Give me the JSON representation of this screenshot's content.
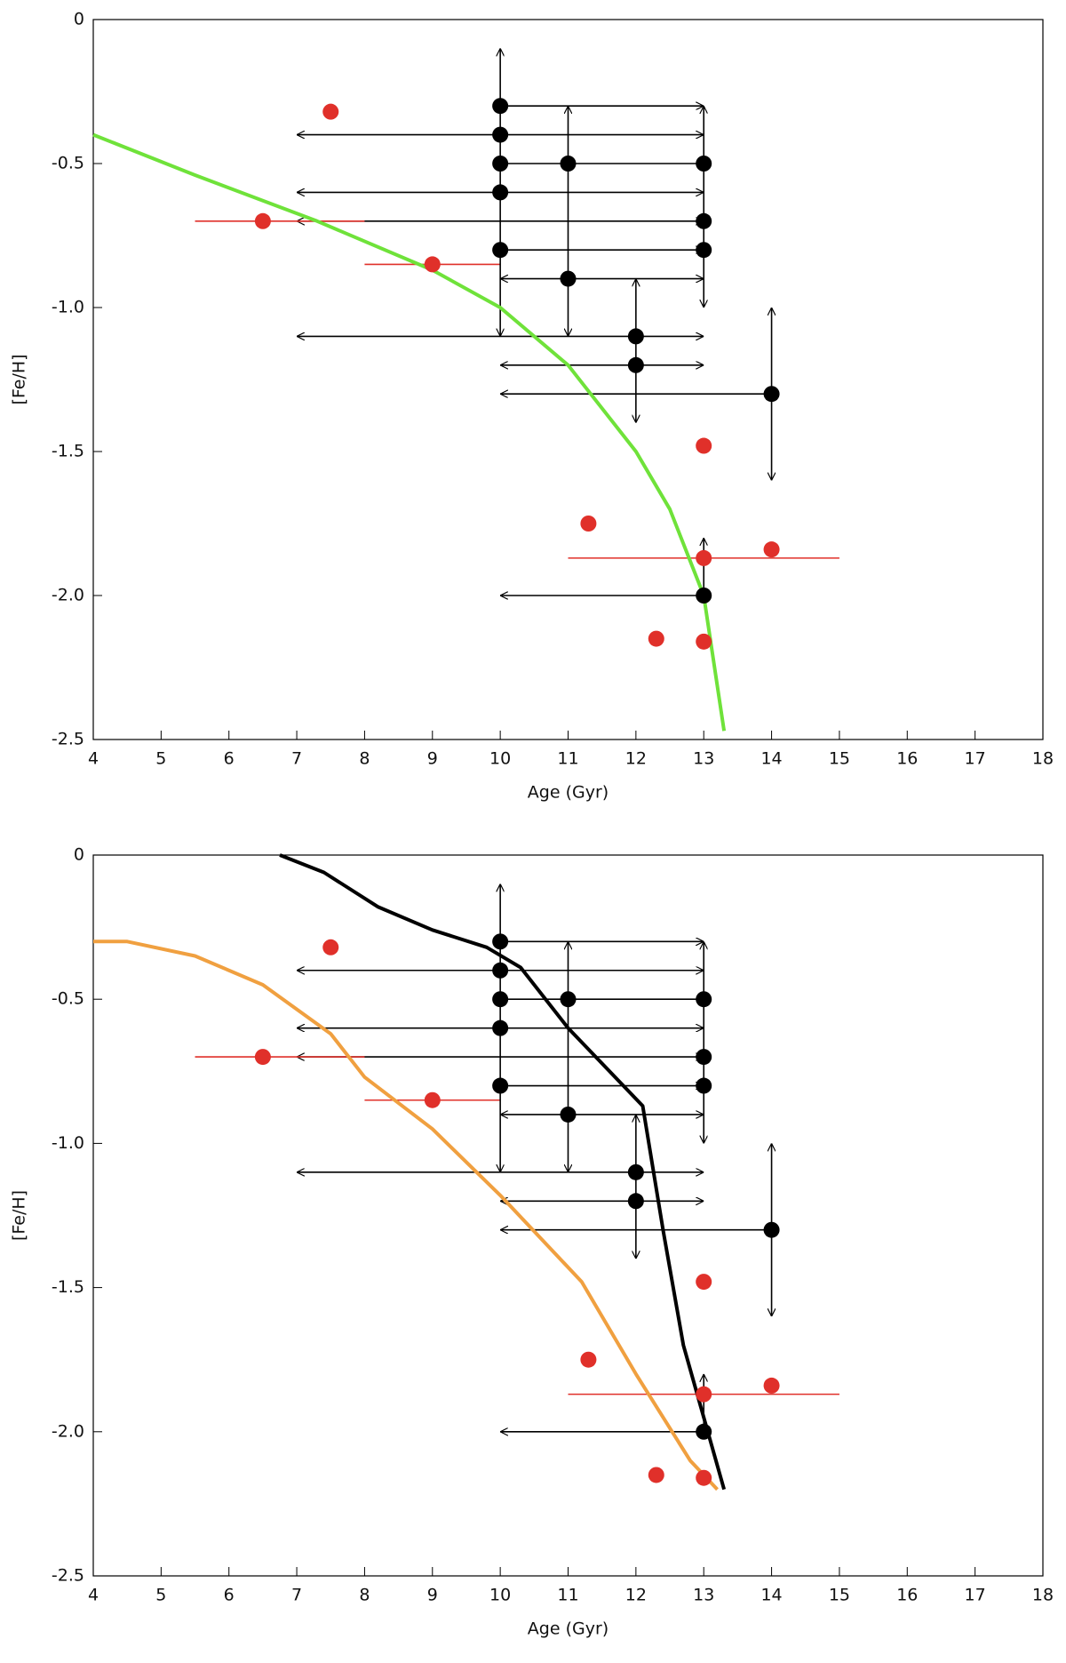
{
  "chart_data": [
    {
      "type": "scatter",
      "xlabel": "Age (Gyr)",
      "ylabel": "[Fe/H]",
      "xlim": [
        4,
        18
      ],
      "ylim": [
        -2.5,
        0
      ],
      "xticks": [
        4,
        5,
        6,
        7,
        8,
        9,
        10,
        11,
        12,
        13,
        14,
        15,
        16,
        17,
        18
      ],
      "yticks": [
        {
          "value": -2.5,
          "label": "-2.5"
        },
        {
          "value": -2.0,
          "label": "-2.0"
        },
        {
          "value": -1.5,
          "label": "-1.5"
        },
        {
          "value": -1.0,
          "label": "-1.0"
        },
        -0.5,
        0
      ],
      "series": [
        {
          "color": "#000000",
          "x": [
            10,
            10,
            10,
            11,
            13,
            10,
            13,
            10,
            13,
            11,
            12,
            12,
            14,
            13
          ],
          "values": [
            -0.3,
            -0.4,
            -0.5,
            -0.5,
            -0.5,
            -0.6,
            -0.7,
            -0.8,
            -0.8,
            -0.9,
            -1.1,
            -1.2,
            -1.3,
            -2.0
          ]
        },
        {
          "color": "#e0302a",
          "x": [
            7.5,
            6.5,
            9,
            13,
            11.3,
            14,
            13,
            12.3,
            13
          ],
          "values": [
            -0.32,
            -0.7,
            -0.85,
            -1.48,
            -1.75,
            -1.84,
            -1.87,
            -2.15,
            -2.16
          ]
        }
      ],
      "hbars": [
        {
          "color": "#000000",
          "y": -0.3,
          "x": [
            10,
            13
          ],
          "arrows": "end"
        },
        {
          "color": "#000000",
          "y": -0.4,
          "x": [
            7,
            13
          ],
          "arrows": "both"
        },
        {
          "color": "#000000",
          "y": -0.5,
          "x": [
            10,
            13
          ],
          "arrows": "none"
        },
        {
          "color": "#000000",
          "y": -0.6,
          "x": [
            7,
            13
          ],
          "arrows": "both"
        },
        {
          "color": "#000000",
          "y": -0.7,
          "x": [
            7,
            13
          ],
          "arrows": "both"
        },
        {
          "color": "#000000",
          "y": -0.8,
          "x": [
            10,
            13
          ],
          "arrows": "end"
        },
        {
          "color": "#000000",
          "y": -0.9,
          "x": [
            10,
            13
          ],
          "arrows": "both"
        },
        {
          "color": "#000000",
          "y": -1.1,
          "x": [
            7,
            13
          ],
          "arrows": "both"
        },
        {
          "color": "#000000",
          "y": -1.2,
          "x": [
            10,
            13
          ],
          "arrows": "both"
        },
        {
          "color": "#000000",
          "y": -1.3,
          "x": [
            14,
            10
          ],
          "arrows": "end"
        },
        {
          "color": "#000000",
          "y": -2.0,
          "x": [
            13,
            10
          ],
          "arrows": "end"
        },
        {
          "color": "#e0302a",
          "y": -0.7,
          "x": [
            5.5,
            8
          ],
          "arrows": "none"
        },
        {
          "color": "#e0302a",
          "y": -0.85,
          "x": [
            8,
            10
          ],
          "arrows": "none"
        },
        {
          "color": "#e0302a",
          "y": -1.87,
          "x": [
            11,
            15
          ],
          "arrows": "none"
        }
      ],
      "vbars": [
        {
          "color": "#000000",
          "x": 10,
          "y": [
            -0.1,
            -1.1
          ],
          "arrows": "both"
        },
        {
          "color": "#000000",
          "x": 11,
          "y": [
            -0.3,
            -1.1
          ],
          "arrows": "both"
        },
        {
          "color": "#000000",
          "x": 12,
          "y": [
            -0.9,
            -1.4
          ],
          "arrows": "both"
        },
        {
          "color": "#000000",
          "x": 13,
          "y": [
            -0.3,
            -1.0
          ],
          "arrows": "both"
        },
        {
          "color": "#000000",
          "x": 13,
          "y": [
            -1.8,
            -2.0
          ],
          "arrows": "start"
        },
        {
          "color": "#000000",
          "x": 14,
          "y": [
            -1.0,
            -1.6
          ],
          "arrows": "both"
        }
      ],
      "lines": [
        {
          "color": "#6fe23a",
          "x": [
            4,
            5.5,
            7.3,
            9,
            10,
            11,
            12,
            12.5,
            13,
            13.3
          ],
          "values": [
            -0.4,
            -0.54,
            -0.7,
            -0.87,
            -1.0,
            -1.2,
            -1.5,
            -1.7,
            -2.0,
            -2.47
          ]
        }
      ]
    },
    {
      "type": "scatter",
      "xlabel": "Age (Gyr)",
      "ylabel": "[Fe/H]",
      "xlim": [
        4,
        18
      ],
      "ylim": [
        -2.5,
        0
      ],
      "xticks": [
        4,
        5,
        6,
        7,
        8,
        9,
        10,
        11,
        12,
        13,
        14,
        15,
        16,
        17,
        18
      ],
      "yticks": [
        {
          "value": -2.5,
          "label": "-2.5"
        },
        {
          "value": -2.0,
          "label": "-2.0"
        },
        {
          "value": -1.5,
          "label": "-1.5"
        },
        {
          "value": -1.0,
          "label": "-1.0"
        },
        -0.5,
        0
      ],
      "series": [
        {
          "color": "#000000",
          "x": [
            10,
            10,
            10,
            11,
            13,
            10,
            13,
            10,
            13,
            11,
            12,
            12,
            14,
            13
          ],
          "values": [
            -0.3,
            -0.4,
            -0.5,
            -0.5,
            -0.5,
            -0.6,
            -0.7,
            -0.8,
            -0.8,
            -0.9,
            -1.1,
            -1.2,
            -1.3,
            -2.0
          ]
        },
        {
          "color": "#e0302a",
          "x": [
            7.5,
            6.5,
            9,
            13,
            11.3,
            14,
            13,
            12.3,
            13
          ],
          "values": [
            -0.32,
            -0.7,
            -0.85,
            -1.48,
            -1.75,
            -1.84,
            -1.87,
            -2.15,
            -2.16
          ]
        }
      ],
      "hbars": [
        {
          "color": "#000000",
          "y": -0.3,
          "x": [
            10,
            13
          ],
          "arrows": "end"
        },
        {
          "color": "#000000",
          "y": -0.4,
          "x": [
            7,
            13
          ],
          "arrows": "both"
        },
        {
          "color": "#000000",
          "y": -0.5,
          "x": [
            10,
            13
          ],
          "arrows": "none"
        },
        {
          "color": "#000000",
          "y": -0.6,
          "x": [
            7,
            13
          ],
          "arrows": "both"
        },
        {
          "color": "#000000",
          "y": -0.7,
          "x": [
            7,
            13
          ],
          "arrows": "both"
        },
        {
          "color": "#000000",
          "y": -0.8,
          "x": [
            10,
            13
          ],
          "arrows": "end"
        },
        {
          "color": "#000000",
          "y": -0.9,
          "x": [
            10,
            13
          ],
          "arrows": "both"
        },
        {
          "color": "#000000",
          "y": -1.1,
          "x": [
            7,
            13
          ],
          "arrows": "both"
        },
        {
          "color": "#000000",
          "y": -1.2,
          "x": [
            10,
            13
          ],
          "arrows": "both"
        },
        {
          "color": "#000000",
          "y": -1.3,
          "x": [
            14,
            10
          ],
          "arrows": "end"
        },
        {
          "color": "#000000",
          "y": -2.0,
          "x": [
            13,
            10
          ],
          "arrows": "end"
        },
        {
          "color": "#e0302a",
          "y": -0.7,
          "x": [
            5.5,
            8
          ],
          "arrows": "none"
        },
        {
          "color": "#e0302a",
          "y": -0.85,
          "x": [
            8,
            10
          ],
          "arrows": "none"
        },
        {
          "color": "#e0302a",
          "y": -1.87,
          "x": [
            11,
            15
          ],
          "arrows": "none"
        }
      ],
      "vbars": [
        {
          "color": "#000000",
          "x": 10,
          "y": [
            -0.1,
            -1.1
          ],
          "arrows": "both"
        },
        {
          "color": "#000000",
          "x": 11,
          "y": [
            -0.3,
            -1.1
          ],
          "arrows": "both"
        },
        {
          "color": "#000000",
          "x": 12,
          "y": [
            -0.9,
            -1.4
          ],
          "arrows": "both"
        },
        {
          "color": "#000000",
          "x": 13,
          "y": [
            -0.3,
            -1.0
          ],
          "arrows": "both"
        },
        {
          "color": "#000000",
          "x": 13,
          "y": [
            -1.8,
            -2.0
          ],
          "arrows": "start"
        },
        {
          "color": "#000000",
          "x": 14,
          "y": [
            -1.0,
            -1.6
          ],
          "arrows": "both"
        }
      ],
      "lines": [
        {
          "color": "#000000",
          "x": [
            6.75,
            7.4,
            8.2,
            9,
            9.8,
            10.3,
            11,
            12.1,
            12.4,
            12.7,
            13.3
          ],
          "values": [
            0,
            -0.06,
            -0.18,
            -0.26,
            -0.32,
            -0.39,
            -0.6,
            -0.87,
            -1.3,
            -1.7,
            -2.2
          ]
        },
        {
          "color": "#f0a040",
          "x": [
            4,
            4.5,
            5.5,
            6.5,
            7.5,
            8,
            9,
            10,
            11.2,
            12,
            12.8,
            13.2
          ],
          "values": [
            -0.3,
            -0.3,
            -0.35,
            -0.45,
            -0.62,
            -0.77,
            -0.95,
            -1.18,
            -1.48,
            -1.8,
            -2.1,
            -2.2
          ]
        }
      ]
    }
  ]
}
